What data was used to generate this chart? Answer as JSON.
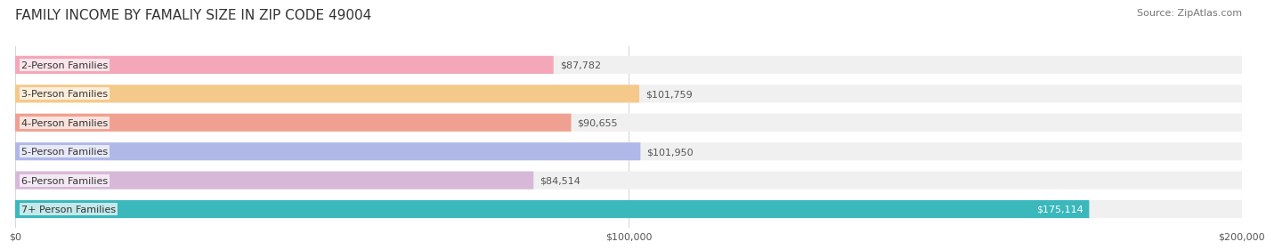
{
  "title": "FAMILY INCOME BY FAMALIY SIZE IN ZIP CODE 49004",
  "source": "Source: ZipAtlas.com",
  "categories": [
    "2-Person Families",
    "3-Person Families",
    "4-Person Families",
    "5-Person Families",
    "6-Person Families",
    "7+ Person Families"
  ],
  "values": [
    87782,
    101759,
    90655,
    101950,
    84514,
    175114
  ],
  "labels": [
    "$87,782",
    "$101,759",
    "$90,655",
    "$101,950",
    "$84,514",
    "$175,114"
  ],
  "bar_colors": [
    "#f4a7b9",
    "#f5c98a",
    "#f0a090",
    "#b0b8e8",
    "#d8b8d8",
    "#3ab8bc"
  ],
  "bar_bg_color": "#f0f0f0",
  "label_bg_color": "#ffffff",
  "xlim": [
    0,
    200000
  ],
  "xticks": [
    0,
    100000,
    200000
  ],
  "xtick_labels": [
    "$0",
    "$100,000",
    "$200,000"
  ],
  "title_fontsize": 11,
  "source_fontsize": 8,
  "label_fontsize": 8,
  "bar_height": 0.62,
  "background_color": "#ffffff",
  "grid_color": "#d8d8d8"
}
